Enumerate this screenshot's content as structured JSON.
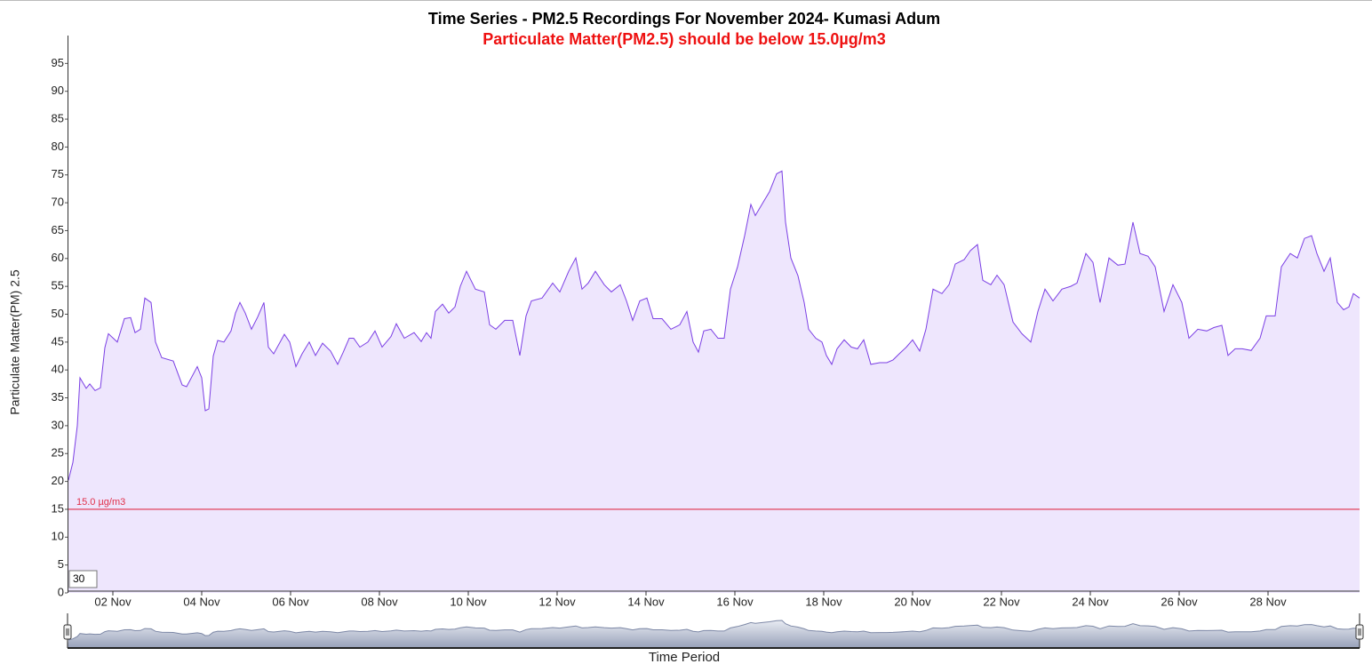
{
  "chart_data": {
    "type": "area",
    "title": "Time Series - PM2.5 Recordings For November 2024- Kumasi Adum",
    "subtitle": "Particulate Matter(PM2.5) should be below 15.0µg/m3",
    "y_label": "Particulate Matter(PM) 2.5",
    "x_label": "Time Period",
    "zoom_input": "30",
    "threshold": {
      "value": 15,
      "label": "15.0 µg/m3",
      "color": "#e0304a"
    },
    "color": "#7b3fe4",
    "fill_color": "#eee6fd",
    "xlim": [
      0.98,
      30.06
    ],
    "xticks": [
      {
        "value": 2,
        "label": "02 Nov"
      },
      {
        "value": 4,
        "label": "04 Nov"
      },
      {
        "value": 6,
        "label": "06 Nov"
      },
      {
        "value": 8,
        "label": "08 Nov"
      },
      {
        "value": 10,
        "label": "10 Nov"
      },
      {
        "value": 12,
        "label": "12 Nov"
      },
      {
        "value": 14,
        "label": "14 Nov"
      },
      {
        "value": 16,
        "label": "16 Nov"
      },
      {
        "value": 18,
        "label": "18 Nov"
      },
      {
        "value": 20,
        "label": "20 Nov"
      },
      {
        "value": 22,
        "label": "22 Nov"
      },
      {
        "value": 24,
        "label": "24 Nov"
      },
      {
        "value": 26,
        "label": "26 Nov"
      },
      {
        "value": 28,
        "label": "28 Nov"
      }
    ],
    "ylim": [
      0,
      100
    ],
    "yticks": [
      0,
      5,
      10,
      15,
      20,
      25,
      30,
      35,
      40,
      45,
      50,
      55,
      60,
      65,
      70,
      75,
      80,
      85,
      90,
      95
    ],
    "x": [
      1.0,
      1.1,
      1.2,
      1.26,
      1.4,
      1.48,
      1.6,
      1.72,
      1.82,
      1.9,
      2.1,
      2.26,
      2.4,
      2.5,
      2.62,
      2.72,
      2.86,
      2.96,
      3.1,
      3.36,
      3.56,
      3.66,
      3.9,
      4.0,
      4.08,
      4.16,
      4.26,
      4.36,
      4.5,
      4.66,
      4.76,
      4.86,
      4.98,
      5.12,
      5.26,
      5.4,
      5.5,
      5.62,
      5.86,
      5.98,
      6.12,
      6.26,
      6.42,
      6.56,
      6.72,
      6.9,
      7.06,
      7.18,
      7.32,
      7.42,
      7.56,
      7.74,
      7.9,
      8.06,
      8.26,
      8.38,
      8.56,
      8.78,
      8.94,
      9.06,
      9.16,
      9.26,
      9.42,
      9.56,
      9.7,
      9.82,
      9.96,
      10.16,
      10.36,
      10.48,
      10.62,
      10.82,
      11.0,
      11.16,
      11.3,
      11.42,
      11.66,
      11.9,
      12.06,
      12.26,
      12.42,
      12.56,
      12.7,
      12.86,
      13.06,
      13.22,
      13.42,
      13.56,
      13.7,
      13.86,
      14.02,
      14.16,
      14.36,
      14.56,
      14.76,
      14.92,
      15.06,
      15.18,
      15.3,
      15.46,
      15.62,
      15.76,
      15.9,
      16.06,
      16.22,
      16.36,
      16.46,
      16.66,
      16.78,
      16.94,
      17.06,
      17.14,
      17.26,
      17.42,
      17.56,
      17.66,
      17.82,
      17.96,
      18.06,
      18.18,
      18.3,
      18.46,
      18.62,
      18.76,
      18.9,
      19.06,
      19.26,
      19.42,
      19.56,
      19.7,
      19.86,
      20.0,
      20.16,
      20.3,
      20.46,
      20.66,
      20.82,
      20.96,
      21.16,
      21.3,
      21.46,
      21.58,
      21.76,
      21.9,
      22.06,
      22.26,
      22.46,
      22.66,
      22.82,
      22.98,
      23.16,
      23.36,
      23.56,
      23.7,
      23.9,
      24.06,
      24.22,
      24.42,
      24.62,
      24.78,
      24.96,
      25.12,
      25.3,
      25.46,
      25.66,
      25.86,
      26.06,
      26.22,
      26.42,
      26.62,
      26.78,
      26.96,
      27.1,
      27.26,
      27.42,
      27.62,
      27.82,
      27.96,
      28.16,
      28.3,
      28.5,
      28.66,
      28.82,
      28.98,
      29.1,
      29.26,
      29.4,
      29.56,
      29.7,
      29.82,
      29.92,
      30.06
    ],
    "values": [
      20.2,
      23.4,
      30,
      38.6,
      36.7,
      37.5,
      36.3,
      36.8,
      44,
      46.5,
      45,
      49.2,
      49.4,
      46.7,
      47.3,
      52.9,
      52.1,
      45,
      42.2,
      41.6,
      37.3,
      37,
      40.6,
      38.6,
      32.7,
      33,
      42.5,
      45.3,
      45,
      47,
      50.2,
      52.1,
      50.2,
      47.3,
      49.5,
      52.1,
      44.1,
      42.9,
      46.4,
      45,
      40.6,
      42.9,
      45,
      42.6,
      44.8,
      43.4,
      41,
      43.1,
      45.7,
      45.7,
      44.1,
      45,
      47,
      44.1,
      46,
      48.3,
      45.7,
      46.7,
      45.1,
      46.7,
      45.7,
      50.5,
      51.8,
      50.2,
      51.3,
      55,
      57.7,
      54.5,
      54,
      48.1,
      47.3,
      48.9,
      48.9,
      42.6,
      49.7,
      52.4,
      52.9,
      55.6,
      54,
      57.7,
      60.1,
      54.5,
      55.6,
      57.7,
      55.3,
      54,
      55.3,
      52.4,
      48.9,
      52.4,
      52.9,
      49.2,
      49.2,
      47.3,
      48.1,
      50.5,
      45,
      43.2,
      47,
      47.3,
      45.7,
      45.7,
      54.5,
      58.5,
      64.1,
      69.7,
      67.7,
      70.4,
      72,
      75.2,
      75.7,
      66.5,
      60.1,
      56.9,
      52.1,
      47.3,
      45.7,
      45,
      42.6,
      41,
      43.8,
      45.4,
      44.1,
      43.8,
      45.4,
      41,
      41.3,
      41.3,
      41.8,
      42.9,
      44.1,
      45.4,
      43.4,
      47.3,
      54.5,
      53.7,
      55.3,
      59,
      59.8,
      61.4,
      62.5,
      56.1,
      55.3,
      57,
      55.3,
      48.6,
      46.5,
      45,
      50.5,
      54.5,
      52.4,
      54.5,
      55,
      55.6,
      60.9,
      59.3,
      52.1,
      60.1,
      58.8,
      59,
      66.5,
      60.9,
      60.4,
      58.5,
      50.5,
      55.3,
      52.1,
      45.7,
      47.3,
      47,
      47.6,
      48,
      42.6,
      43.8,
      43.8,
      43.5,
      45.7,
      49.7,
      49.7,
      58.5,
      60.9,
      60.1,
      63.6,
      64.1,
      60.9,
      57.7,
      60.1,
      52.1,
      50.8,
      51.3,
      53.7,
      52.9
    ]
  }
}
